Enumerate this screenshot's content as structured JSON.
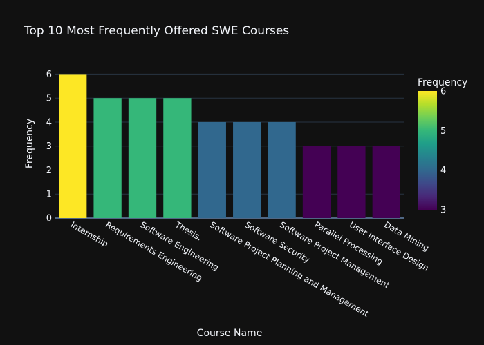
{
  "chart_data": {
    "type": "bar",
    "title": "Top 10 Most Frequently Offered SWE Courses",
    "xlabel": "Course Name",
    "ylabel": "Frequency",
    "categories": [
      "Internship",
      "Requirements Engineering",
      "Software Engineering",
      "Thesis.",
      "Software Project Planning and Management",
      "Software Security",
      "Software Project Management",
      "Parallel Processing",
      "User Interface Design",
      "Data Mining"
    ],
    "values": [
      6,
      5,
      5,
      5,
      4,
      4,
      4,
      3,
      3,
      3
    ],
    "ylim": [
      0,
      6.3
    ],
    "yticks": [
      0,
      1,
      2,
      3,
      4,
      5,
      6
    ],
    "grid": true,
    "colorscale": "viridis",
    "bar_colors": [
      "#fde725",
      "#35b779",
      "#35b779",
      "#35b779",
      "#31688e",
      "#31688e",
      "#31688e",
      "#440154",
      "#440154",
      "#440154"
    ],
    "colorbar": {
      "title": "Frequency",
      "range": [
        3,
        6
      ],
      "ticks": [
        3,
        4,
        5,
        6
      ]
    },
    "background": "#111111"
  }
}
